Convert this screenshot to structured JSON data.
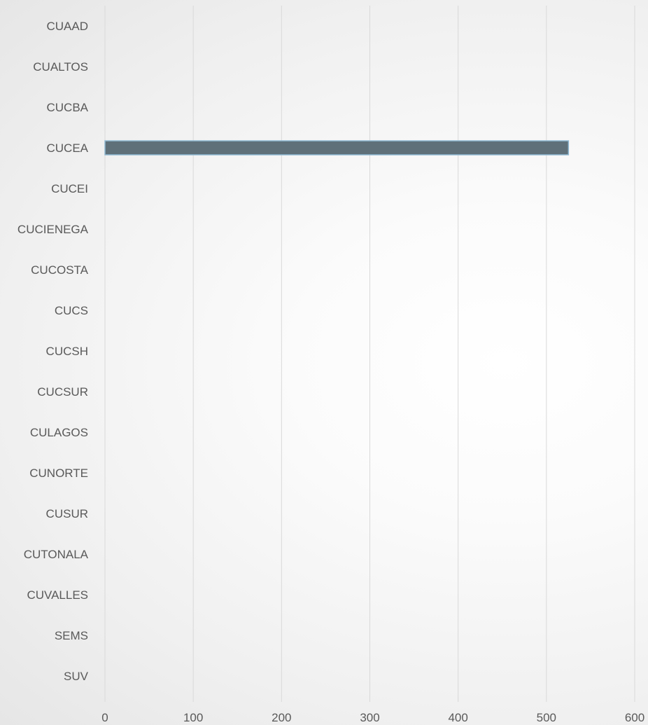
{
  "chart_data": {
    "type": "bar",
    "orientation": "horizontal",
    "categories": [
      "CUAAD",
      "CUALTOS",
      "CUCBA",
      "CUCEA",
      "CUCEI",
      "CUCIENEGA",
      "CUCOSTA",
      "CUCS",
      "CUCSH",
      "CUCSUR",
      "CULAGOS",
      "CUNORTE",
      "CUSUR",
      "CUTONALA",
      "CUVALLES",
      "SEMS",
      "SUV"
    ],
    "values": [
      0,
      0,
      0,
      525,
      0,
      0,
      0,
      0,
      0,
      0,
      0,
      0,
      0,
      0,
      0,
      0,
      0
    ],
    "xlim": [
      0,
      600
    ],
    "xticks": [
      0,
      100,
      200,
      300,
      400,
      500,
      600
    ],
    "xtick_labels": [
      "0",
      "100",
      "200",
      "300",
      "400",
      "500",
      "600"
    ],
    "grid": "vertical",
    "legend": "none",
    "title": "",
    "xlabel": "",
    "ylabel": "",
    "colors": {
      "bar_fill": "#5f7079",
      "bar_stroke": "#8fb9d3",
      "grid": "#d9d9d9",
      "text": "#595959"
    }
  }
}
